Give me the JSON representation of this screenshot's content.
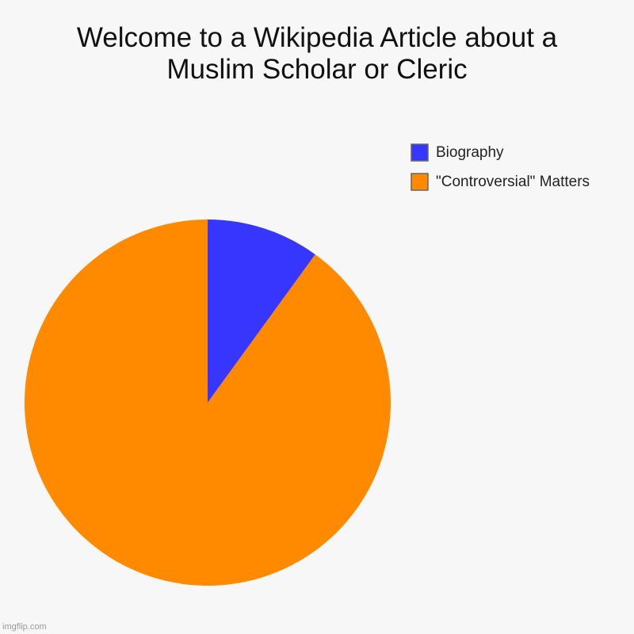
{
  "chart_data": {
    "type": "pie",
    "title": "Welcome to a Wikipedia Article about a Muslim Scholar or Cleric",
    "categories": [
      "Biography",
      "\"Controversial\" Matters"
    ],
    "values": [
      10,
      90
    ],
    "colors": [
      "#3636ff",
      "#ff8a00"
    ],
    "legend": "top-right"
  },
  "watermark": "imgflip.com"
}
